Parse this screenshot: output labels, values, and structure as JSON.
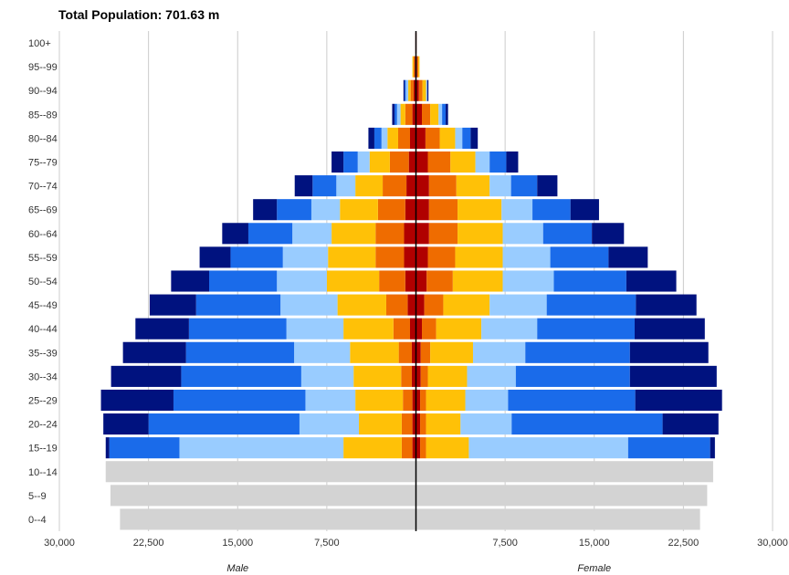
{
  "chart_data": {
    "type": "bar",
    "orientation": "horizontal",
    "layout": "population-pyramid",
    "title": "Total Population: 701.63 m",
    "left_label": "Male",
    "right_label": "Female",
    "xlim": [
      -30000,
      30000
    ],
    "x_tick_values": [
      -30000,
      -22500,
      -15000,
      -7500,
      0,
      7500,
      15000,
      22500,
      30000
    ],
    "x_tick_labels": [
      "30,000",
      "22,500",
      "15,000",
      "7,500",
      "",
      "7,500",
      "15,000",
      "22,500",
      "30,000"
    ],
    "grid": true,
    "categories": [
      "0--4",
      "5--9",
      "10--14",
      "15--19",
      "20--24",
      "25--29",
      "30--34",
      "35--39",
      "40--44",
      "45--49",
      "50--54",
      "55--59",
      "60--64",
      "65--69",
      "70--74",
      "75--79",
      "80--84",
      "85--89",
      "90--94",
      "95--99",
      "100+"
    ],
    "series": [
      {
        "color": "#b00000",
        "male": [
          0,
          0,
          0,
          300,
          300,
          300,
          350,
          350,
          500,
          700,
          900,
          1000,
          1000,
          900,
          800,
          600,
          500,
          300,
          200,
          100,
          50
        ],
        "female": [
          0,
          0,
          0,
          350,
          350,
          350,
          400,
          400,
          500,
          700,
          900,
          1000,
          1100,
          1100,
          1100,
          1000,
          800,
          500,
          250,
          100,
          50
        ]
      },
      {
        "color": "#ef6c00",
        "male": [
          0,
          0,
          0,
          900,
          900,
          800,
          900,
          1100,
          1400,
          1800,
          2200,
          2400,
          2400,
          2300,
          2000,
          1600,
          1000,
          600,
          250,
          100,
          0
        ],
        "female": [
          0,
          0,
          0,
          500,
          500,
          500,
          600,
          800,
          1200,
          1600,
          2200,
          2300,
          2400,
          2400,
          2300,
          1900,
          1200,
          700,
          300,
          100,
          0
        ]
      },
      {
        "color": "#ffc107",
        "male": [
          0,
          0,
          0,
          4900,
          3600,
          4000,
          4000,
          4100,
          4200,
          4100,
          4400,
          4000,
          3700,
          3200,
          2300,
          1700,
          900,
          400,
          200,
          100,
          0
        ],
        "female": [
          0,
          0,
          0,
          3600,
          2900,
          3300,
          3300,
          3600,
          3800,
          3900,
          4200,
          4000,
          3800,
          3700,
          2800,
          2100,
          1300,
          700,
          300,
          100,
          0
        ]
      },
      {
        "color": "#99ccff",
        "male": [
          0,
          0,
          0,
          13800,
          5000,
          4200,
          4400,
          4700,
          4800,
          4800,
          4200,
          3800,
          3300,
          2400,
          1600,
          1000,
          500,
          300,
          200,
          0,
          0
        ],
        "female": [
          0,
          0,
          0,
          13400,
          4300,
          3600,
          4100,
          4400,
          4700,
          4800,
          4300,
          4000,
          3400,
          2600,
          1800,
          1200,
          600,
          300,
          100,
          0,
          0
        ]
      },
      {
        "color": "#1a6bea",
        "male": [
          0,
          0,
          0,
          5900,
          12700,
          11100,
          10100,
          9100,
          8200,
          7100,
          5700,
          4400,
          3700,
          2900,
          2000,
          1200,
          600,
          200,
          100,
          0,
          0
        ],
        "female": [
          0,
          0,
          0,
          6900,
          12700,
          10700,
          9600,
          8800,
          8200,
          7500,
          6100,
          4900,
          4100,
          3200,
          2200,
          1400,
          700,
          300,
          0,
          0,
          0
        ]
      },
      {
        "color": "#00127f",
        "male": [
          0,
          0,
          0,
          300,
          3800,
          6100,
          5900,
          5300,
          4500,
          3900,
          3200,
          2600,
          2200,
          2000,
          1500,
          1000,
          500,
          200,
          100,
          0,
          0
        ],
        "female": [
          0,
          0,
          0,
          400,
          4700,
          7300,
          7300,
          6600,
          5900,
          5100,
          4200,
          3300,
          2700,
          2400,
          1700,
          1000,
          600,
          200,
          100,
          0,
          0
        ]
      },
      {
        "color": "#d3d3d3",
        "male": [
          24900,
          25700,
          26100,
          0,
          0,
          0,
          0,
          0,
          0,
          0,
          0,
          0,
          0,
          0,
          0,
          0,
          0,
          0,
          0,
          0,
          0
        ],
        "female": [
          23900,
          24500,
          25000,
          0,
          0,
          0,
          0,
          0,
          0,
          0,
          0,
          0,
          0,
          0,
          0,
          0,
          0,
          0,
          0,
          0,
          0
        ]
      }
    ]
  }
}
